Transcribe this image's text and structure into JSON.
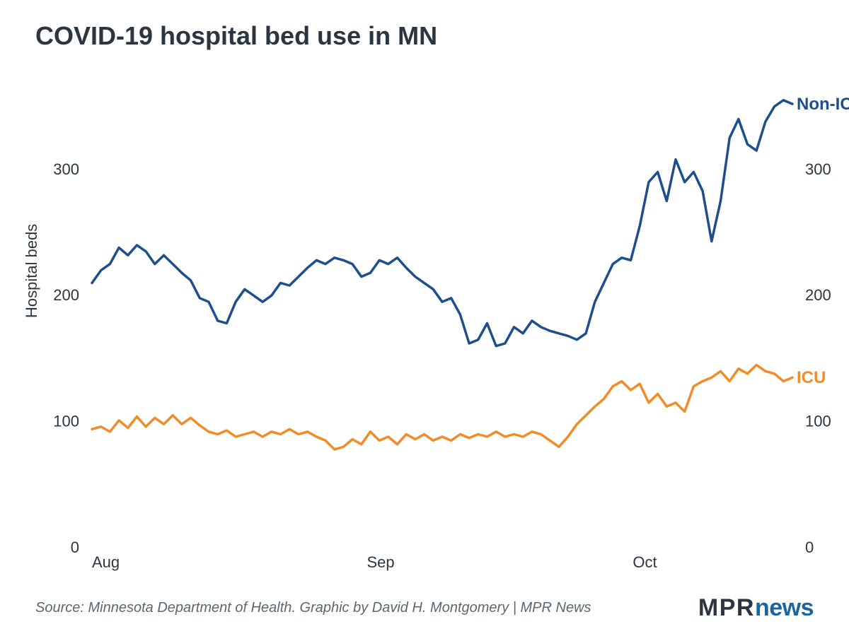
{
  "chart": {
    "type": "line",
    "title": "COVID-19 hospital bed use in MN",
    "title_fontsize": 36,
    "title_color": "#2b3640",
    "background_color": "#ffffff",
    "y_axis": {
      "label": "Hospital beds",
      "label_fontsize": 22,
      "ticks": [
        0,
        100,
        200,
        300
      ],
      "ylim": [
        0,
        370
      ],
      "dual_side": true,
      "tick_color": "#2b3640"
    },
    "x_axis": {
      "ticks": [
        "Aug",
        "Sep",
        "Oct"
      ],
      "tick_positions": [
        0,
        31,
        61
      ],
      "xlim": [
        0,
        79
      ],
      "tick_color": "#2b3640"
    },
    "line_width": 3.5,
    "series": [
      {
        "name": "Non-ICU",
        "color": "#1f4e8c",
        "label": "Non-ICU",
        "label_position": "end-right",
        "values": [
          210,
          220,
          225,
          238,
          232,
          240,
          235,
          225,
          232,
          225,
          218,
          212,
          198,
          195,
          180,
          178,
          195,
          205,
          200,
          195,
          200,
          210,
          208,
          215,
          222,
          228,
          225,
          230,
          228,
          225,
          215,
          218,
          228,
          225,
          230,
          222,
          215,
          210,
          205,
          195,
          198,
          185,
          162,
          165,
          178,
          160,
          162,
          175,
          170,
          180,
          175,
          172,
          170,
          168,
          165,
          170,
          195,
          210,
          225,
          230,
          228,
          255,
          290,
          298,
          275,
          308,
          290,
          298,
          283,
          243,
          275,
          325,
          340,
          320,
          315,
          338,
          350,
          355,
          352
        ]
      },
      {
        "name": "ICU",
        "color": "#f28c28",
        "label": "ICU",
        "label_position": "end-right",
        "values": [
          94,
          96,
          92,
          101,
          95,
          104,
          96,
          103,
          98,
          105,
          98,
          103,
          97,
          92,
          90,
          93,
          88,
          90,
          92,
          88,
          92,
          90,
          94,
          90,
          92,
          88,
          85,
          78,
          80,
          86,
          82,
          92,
          85,
          88,
          82,
          90,
          86,
          90,
          85,
          88,
          85,
          90,
          87,
          90,
          88,
          92,
          88,
          90,
          88,
          92,
          90,
          85,
          80,
          88,
          98,
          105,
          112,
          118,
          128,
          132,
          125,
          130,
          115,
          122,
          112,
          115,
          108,
          128,
          132,
          135,
          140,
          132,
          142,
          138,
          145,
          140,
          138,
          132,
          135
        ]
      }
    ]
  },
  "source": "Source: Minnesota Department of Health. Graphic by David H. Montgomery | MPR News",
  "logo": {
    "part1": "MPR",
    "part2": "news"
  }
}
